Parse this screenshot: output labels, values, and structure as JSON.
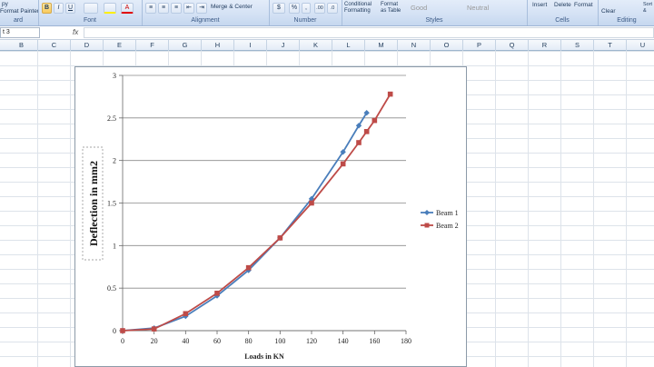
{
  "ribbon": {
    "clipboard": {
      "copy": "py",
      "format_painter": "Format Painter",
      "label": "ard"
    },
    "font": {
      "label": "Font",
      "bold": "B",
      "italic": "I",
      "underline": "U"
    },
    "alignment": {
      "label": "Alignment",
      "merge": "Merge & Center"
    },
    "number": {
      "label": "Number",
      "currency": "$",
      "percent": "%",
      "comma": ",",
      "inc_dec": ".00",
      "dec_dec": ".0"
    },
    "styles": {
      "label": "Styles",
      "conditional": "Conditional Formatting",
      "format_table": "Format as Table",
      "good": "Good",
      "neutral": "Neutral"
    },
    "cells": {
      "label": "Cells",
      "insert": "Insert",
      "delete": "Delete",
      "format": "Format"
    },
    "editing": {
      "label": "Editing",
      "clear": "Clear",
      "sort": "Sort & Filter"
    }
  },
  "formula_bar": {
    "name_box": "t 3",
    "fx": "fx",
    "value": ""
  },
  "columns": [
    "B",
    "C",
    "D",
    "E",
    "F",
    "G",
    "H",
    "I",
    "J",
    "K",
    "L",
    "M",
    "N",
    "O",
    "P",
    "Q",
    "R",
    "S",
    "T",
    "U"
  ],
  "chart_data": {
    "type": "line",
    "title": "",
    "xlabel": "Loads in KN",
    "ylabel": "Deflection in mm2",
    "xlim": [
      0,
      180
    ],
    "ylim": [
      0,
      3
    ],
    "x_ticks": [
      "0",
      "20",
      "40",
      "60",
      "80",
      "100",
      "120",
      "140",
      "160",
      "180"
    ],
    "y_ticks": [
      "0",
      "0.5",
      "1",
      "1.5",
      "2",
      "2.5",
      "3"
    ],
    "grid": true,
    "legend_position": "right",
    "series": [
      {
        "name": "Beam 1",
        "color": "#4a7ebb",
        "marker": "diamond",
        "x": [
          0,
          20,
          40,
          60,
          80,
          100,
          120,
          140,
          150,
          155
        ],
        "y": [
          0,
          0.03,
          0.17,
          0.41,
          0.71,
          1.09,
          1.55,
          2.1,
          2.41,
          2.56
        ]
      },
      {
        "name": "Beam 2",
        "color": "#be4b48",
        "marker": "square",
        "x": [
          0,
          20,
          40,
          60,
          80,
          100,
          120,
          140,
          150,
          155,
          160,
          170
        ],
        "y": [
          0,
          0.02,
          0.2,
          0.44,
          0.74,
          1.09,
          1.5,
          1.96,
          2.21,
          2.34,
          2.47,
          2.78
        ]
      }
    ]
  }
}
